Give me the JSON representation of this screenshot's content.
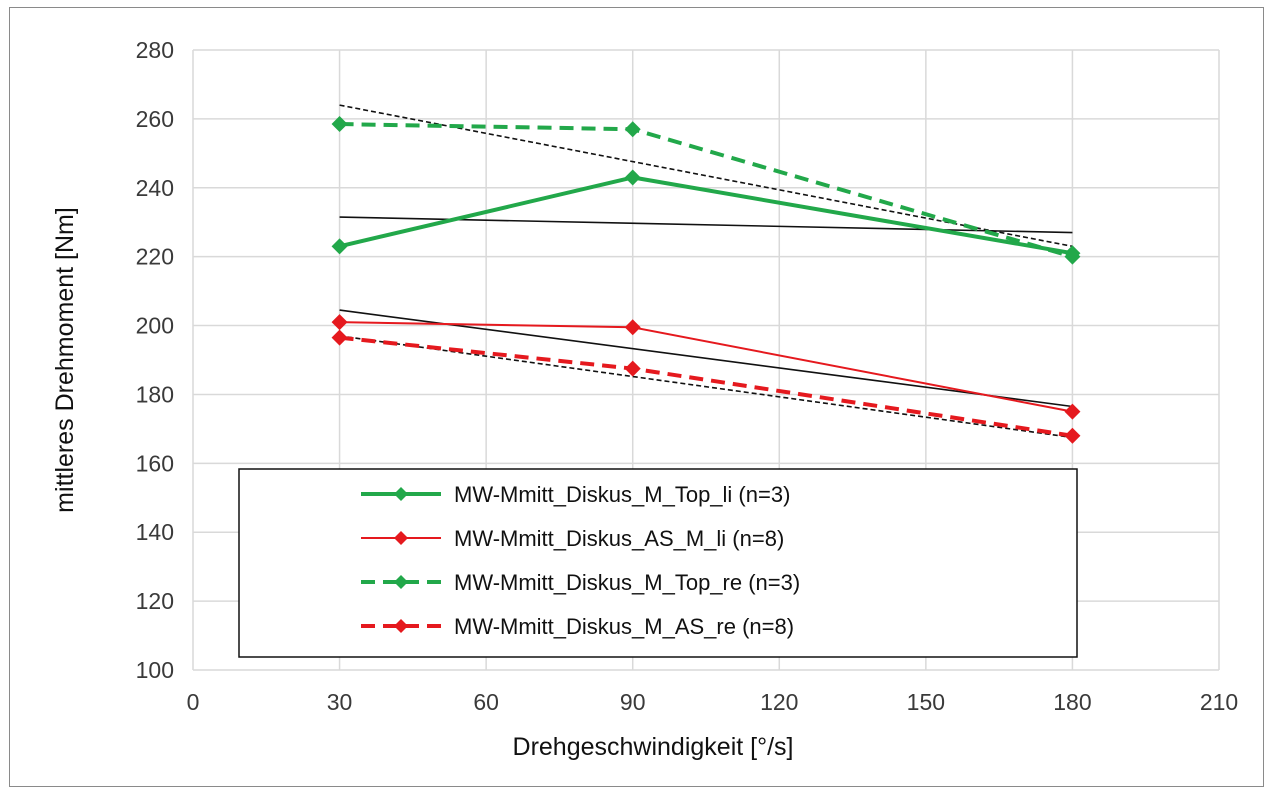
{
  "chart_data": {
    "type": "line",
    "title": "",
    "xlabel": "Drehgeschwindigkeit [°/s]",
    "ylabel": "mittleres Drehmoment [Nm]",
    "xlim": [
      0,
      210
    ],
    "ylim": [
      100,
      280
    ],
    "x_ticks": [
      "0",
      "30",
      "60",
      "90",
      "120",
      "150",
      "180",
      "210"
    ],
    "y_ticks": [
      "100",
      "120",
      "140",
      "160",
      "180",
      "200",
      "220",
      "240",
      "260",
      "280"
    ],
    "grid": true,
    "legend_position": "lower-center",
    "x": [
      30,
      90,
      180
    ],
    "series": [
      {
        "name": "MW-Mmitt_Diskus_M_Top_li (n=3)",
        "values": [
          223,
          243,
          221
        ],
        "color": "#22a84a",
        "dash": "solid",
        "width": "thick"
      },
      {
        "name": "MW-Mmitt_Diskus_AS_M_li (n=8)",
        "values": [
          201,
          199.5,
          175
        ],
        "color": "#e5191e",
        "dash": "solid",
        "width": "thin"
      },
      {
        "name": "MW-Mmitt_Diskus_M_Top_re (n=3)",
        "values": [
          258.5,
          257,
          220
        ],
        "color": "#22a84a",
        "dash": "dashed",
        "width": "thick"
      },
      {
        "name": "MW-Mmitt_Diskus_M_AS_re (n=8)",
        "values": [
          196.5,
          187.5,
          168
        ],
        "color": "#e5191e",
        "dash": "dashed",
        "width": "thick"
      }
    ],
    "trendlines": [
      {
        "x": [
          30,
          180
        ],
        "values": [
          231.5,
          227
        ],
        "style": "solid"
      },
      {
        "x": [
          30,
          180
        ],
        "values": [
          204.5,
          176.5
        ],
        "style": "solid"
      },
      {
        "x": [
          30,
          180
        ],
        "values": [
          264,
          223
        ],
        "style": "dotted"
      },
      {
        "x": [
          30,
          180
        ],
        "values": [
          197,
          167.5
        ],
        "style": "dotted"
      }
    ]
  }
}
